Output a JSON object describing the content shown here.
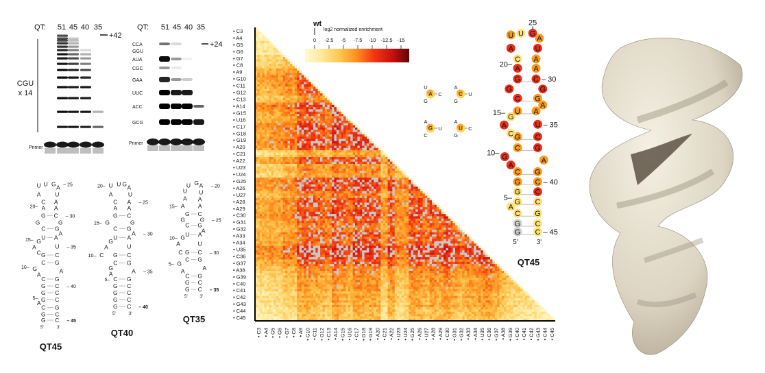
{
  "gel_left": {
    "qt_label": "QT:",
    "lanes": [
      "51",
      "45",
      "40",
      "35"
    ],
    "arrow_label": "+42",
    "repeat_label_1": "CGU",
    "repeat_label_2": "x 14",
    "primer_label": "Primer",
    "band_intensity_by_lane": [
      [
        0.7,
        0.7,
        0.7,
        0.8,
        0.8,
        0.85,
        0.9,
        0.9,
        0.9,
        0.95,
        0.95,
        0.95,
        0.95,
        0.95,
        0.9
      ],
      [
        0,
        0.2,
        0.25,
        0.3,
        0.4,
        0.5,
        0.6,
        0.7,
        0.75,
        0.85,
        0.9,
        0.9,
        0.9,
        0.9,
        0.9
      ],
      [
        0,
        0,
        0,
        0,
        0,
        0.15,
        0.3,
        0.4,
        0.5,
        0.7,
        0.85,
        0.9,
        0.9,
        0.9,
        0.85
      ],
      [
        0,
        0,
        0,
        0,
        0,
        0,
        0,
        0,
        0,
        0,
        0,
        0,
        0,
        0.3,
        0.6
      ]
    ]
  },
  "gel_right": {
    "qt_label": "QT:",
    "lanes": [
      "51",
      "45",
      "40",
      "35"
    ],
    "arrow_label": "+24",
    "primer_label": "Primer",
    "bands": [
      {
        "label": "CCA",
        "intensity": [
          0.55,
          0.15,
          0,
          0
        ]
      },
      {
        "label": "GGU",
        "intensity": [
          0,
          0,
          0,
          0
        ]
      },
      {
        "label": "AUA",
        "intensity": [
          0.95,
          0.4,
          0.05,
          0
        ]
      },
      {
        "label": "CGC",
        "intensity": [
          0.4,
          0.08,
          0,
          0
        ]
      },
      {
        "label": "GAA",
        "intensity": [
          0.85,
          0.4,
          0.2,
          0
        ]
      },
      {
        "label": "UUC",
        "intensity": [
          1,
          0.9,
          0.9,
          0
        ]
      },
      {
        "label": "ACC",
        "intensity": [
          1,
          1,
          1,
          0.6
        ]
      },
      {
        "label": "GCG",
        "intensity": [
          1,
          1,
          1,
          0.9
        ]
      }
    ]
  },
  "structures": [
    {
      "name": "QT45",
      "sequence": "GGCAGGGCAGCGCAGUCGGACAUUGAUAACGGAAUCGAGCCCGCC",
      "numbers": [
        "5",
        "10",
        "15",
        "20",
        "25",
        "30",
        "35",
        "40",
        "45"
      ],
      "five_prime": "5'",
      "three_prime": "3'"
    },
    {
      "name": "QT40",
      "sequence": "GGGGCAGCGCAGUCGGACAUUGAUAACGGAAUCGAGCCCC",
      "numbers": [
        "5",
        "10",
        "15",
        "20",
        "25",
        "30",
        "35",
        "40"
      ],
      "five_prime": "5'",
      "three_prime": "3'"
    },
    {
      "name": "QT35",
      "sequence": "GGCAGCGCAGUCGGAAUUGAUAACGGAAUCGAGCC",
      "numbers": [
        "5",
        "10",
        "15",
        "20",
        "25",
        "30",
        "35"
      ],
      "five_prime": "5'",
      "three_prime": "3'"
    }
  ],
  "heatmap": {
    "legend_marker": "wt",
    "legend_title": "log2 normalized enrichment",
    "legend_ticks": [
      "0",
      "-2.5",
      "-5",
      "-7.5",
      "-10",
      "-12.5",
      "-15"
    ],
    "legend_range": [
      0,
      -15
    ],
    "colormap": [
      "#fffbd2",
      "#ffe89a",
      "#ffc64e",
      "#ff8c1c",
      "#f23512",
      "#c91010",
      "#5e0808"
    ],
    "missing_color": "#c8c8c8",
    "positions": [
      "C3",
      "A4",
      "G5",
      "G6",
      "G7",
      "C8",
      "A9",
      "G10",
      "C11",
      "G12",
      "C13",
      "A14",
      "G15",
      "U16",
      "C17",
      "G18",
      "G19",
      "A20",
      "C21",
      "A22",
      "U23",
      "U24",
      "G25",
      "A26",
      "U27",
      "A28",
      "A29",
      "C30",
      "G31",
      "G32",
      "A33",
      "A34",
      "U35",
      "C36",
      "G37",
      "A38",
      "G39",
      "C40",
      "C41",
      "C42",
      "G43",
      "C44",
      "C45"
    ],
    "approx_row_mean_log2": [
      -2,
      -2,
      -3,
      -3,
      -5,
      -5,
      -9,
      -10,
      -9,
      -8,
      -7,
      -11,
      -9,
      -8,
      -11,
      -10,
      -10,
      -10,
      -4,
      -10,
      -5,
      -5,
      -10,
      -10,
      -8,
      -10,
      -9,
      -11,
      -9,
      -8,
      -9,
      -9,
      -11,
      -11,
      -9,
      -7,
      -5,
      -4,
      -4,
      -3,
      -3,
      -2,
      -2
    ]
  },
  "triads": [
    {
      "center": "A",
      "top": "U",
      "right": "C",
      "bottom": "G"
    },
    {
      "center": "C",
      "top": "A",
      "right": "U",
      "bottom": "G"
    },
    {
      "center": "G",
      "top": "A",
      "right": "U",
      "bottom": "C"
    },
    {
      "center": "U",
      "top": "A",
      "right": "C",
      "bottom": "G"
    }
  ],
  "colored_structure": {
    "name": "QT45",
    "nucleotide_colors": [
      "g",
      "g",
      "y",
      "y",
      "y",
      "y",
      "o",
      "o",
      "r",
      "r",
      "o",
      "o",
      "y",
      "r",
      "y",
      "o",
      "r",
      "r",
      "r",
      "r",
      "y",
      "r",
      "o",
      "y",
      "r",
      "o",
      "r",
      "o",
      "o",
      "r",
      "r",
      "o",
      "o",
      "o",
      "r",
      "r",
      "r",
      "o",
      "o",
      "o",
      "r",
      "y",
      "y",
      "y",
      "y"
    ],
    "color_key": {
      "y": "#ffe27a",
      "o": "#f79a1e",
      "r": "#e8301a",
      "g": "#d0d0d0"
    }
  }
}
